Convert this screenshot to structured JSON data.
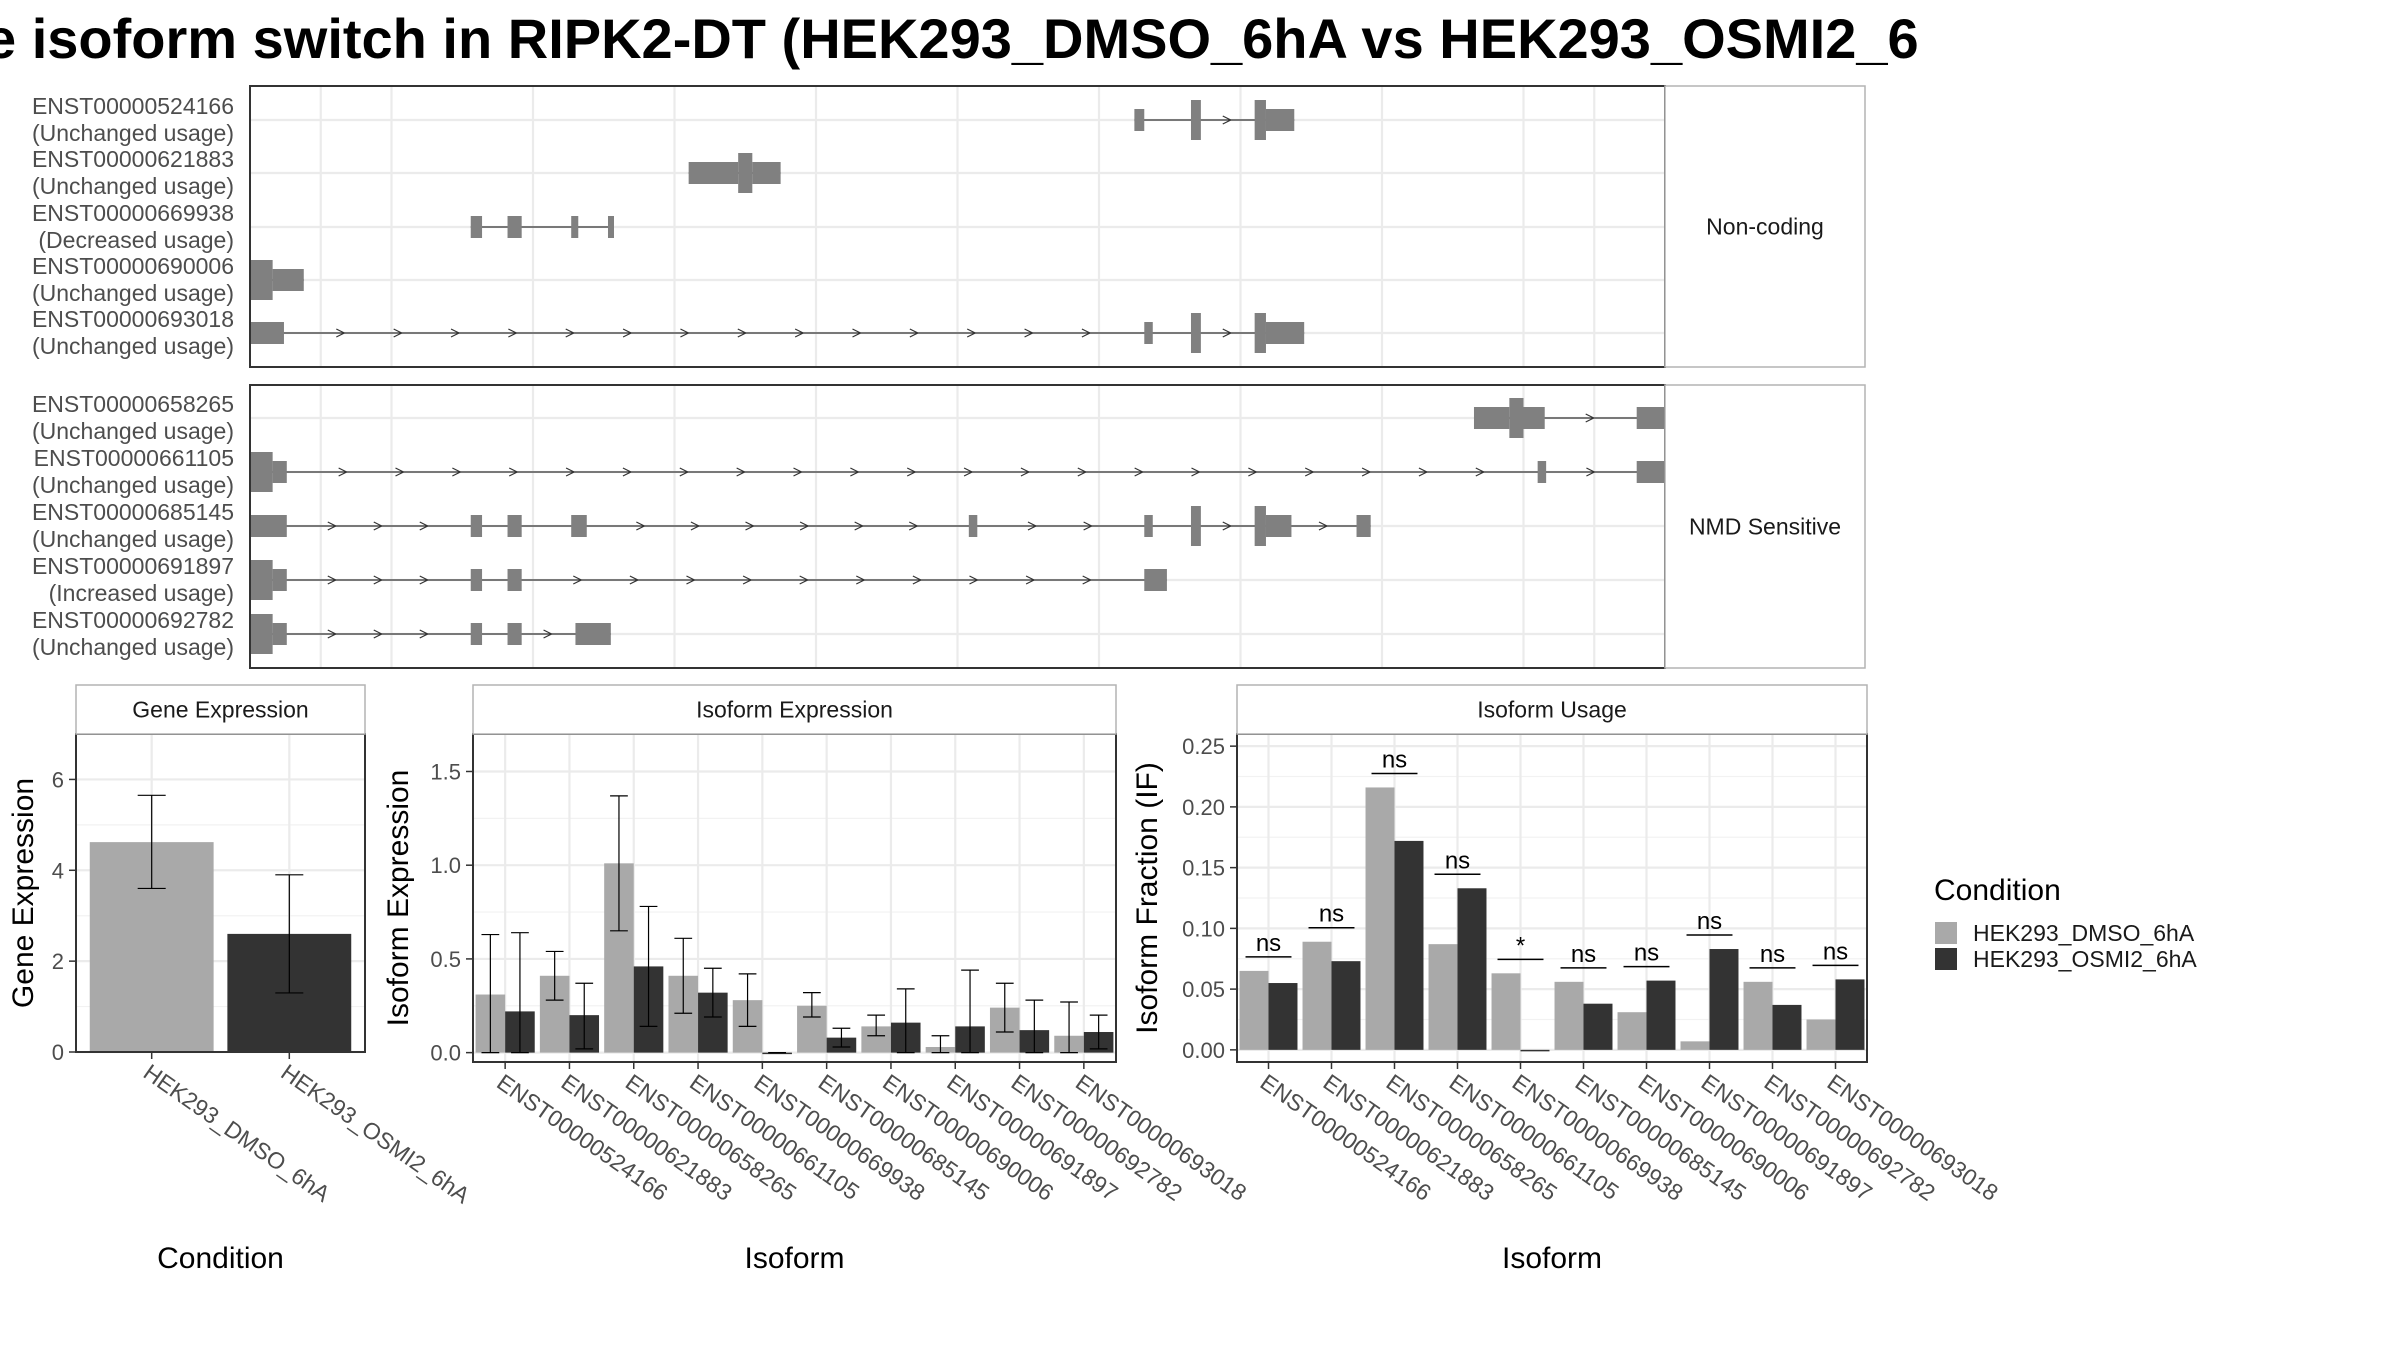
{
  "title": "e isoform switch in RIPK2-DT (HEK293_DMSO_6hA vs HEK293_OSMI2_6",
  "colors": {
    "dmso": "#a9a9a9",
    "osmi2": "#333333",
    "exon": "#808080",
    "grid": "#ebebeb",
    "strip_fill": "#ffffff"
  },
  "chart_data": [
    {
      "type": "transcript_structure",
      "panel": "Non-coding",
      "transcripts": [
        {
          "id": "ENST00000524166",
          "usage": "(Unchanged usage)"
        },
        {
          "id": "ENST00000621883",
          "usage": "(Unchanged usage)"
        },
        {
          "id": "ENST00000669938",
          "usage": "(Decreased usage)"
        },
        {
          "id": "ENST00000690006",
          "usage": "(Unchanged usage)"
        },
        {
          "id": "ENST00000693018",
          "usage": "(Unchanged usage)"
        }
      ]
    },
    {
      "type": "transcript_structure",
      "panel": "NMD Sensitive",
      "transcripts": [
        {
          "id": "ENST00000658265",
          "usage": "(Unchanged usage)"
        },
        {
          "id": "ENST00000661105",
          "usage": "(Unchanged usage)"
        },
        {
          "id": "ENST00000685145",
          "usage": "(Unchanged usage)"
        },
        {
          "id": "ENST00000691897",
          "usage": "(Increased usage)"
        },
        {
          "id": "ENST00000692782",
          "usage": "(Unchanged usage)"
        }
      ]
    },
    {
      "type": "bar",
      "title": "Gene Expression",
      "xlabel": "Condition",
      "ylabel": "Gene Expression",
      "ylim": [
        0,
        7
      ],
      "yticks": [
        0,
        2,
        4,
        6
      ],
      "categories": [
        "HEK293_DMSO_6hA",
        "HEK293_OSMI2_6hA"
      ],
      "values": [
        4.62,
        2.6
      ],
      "err_low": [
        3.6,
        1.3
      ],
      "err_high": [
        5.65,
        3.9
      ]
    },
    {
      "type": "bar",
      "title": "Isoform Expression",
      "xlabel": "Isoform",
      "ylabel": "Isoform Expression",
      "ylim": [
        -0.05,
        1.7
      ],
      "yticks": [
        0.0,
        0.5,
        1.0,
        1.5
      ],
      "ytick_labels": [
        "0.0",
        "0.5",
        "1.0",
        "1.5"
      ],
      "categories": [
        "ENST00000524166",
        "ENST00000621883",
        "ENST00000658265",
        "ENST00000661105",
        "ENST00000669938",
        "ENST00000685145",
        "ENST00000690006",
        "ENST00000691897",
        "ENST00000692782",
        "ENST00000693018"
      ],
      "series": [
        {
          "name": "HEK293_DMSO_6hA",
          "values": [
            0.31,
            0.41,
            1.01,
            0.41,
            0.28,
            0.25,
            0.14,
            0.03,
            0.24,
            0.09
          ],
          "err_low": [
            0.0,
            0.28,
            0.65,
            0.21,
            0.14,
            0.19,
            0.09,
            0.0,
            0.11,
            0.0
          ],
          "err_high": [
            0.63,
            0.54,
            1.37,
            0.61,
            0.42,
            0.32,
            0.2,
            0.09,
            0.37,
            0.27
          ]
        },
        {
          "name": "HEK293_OSMI2_6hA",
          "values": [
            0.22,
            0.2,
            0.46,
            0.32,
            0.0,
            0.08,
            0.16,
            0.14,
            0.12,
            0.11
          ],
          "err_low": [
            0.0,
            0.02,
            0.14,
            0.19,
            0.0,
            0.03,
            0.0,
            0.0,
            0.0,
            0.02
          ],
          "err_high": [
            0.64,
            0.37,
            0.78,
            0.45,
            0.0,
            0.13,
            0.34,
            0.44,
            0.28,
            0.2
          ]
        }
      ]
    },
    {
      "type": "bar",
      "title": "Isoform Usage",
      "xlabel": "Isoform",
      "ylabel": "Isoform Fraction (IF)",
      "ylim": [
        -0.01,
        0.26
      ],
      "yticks": [
        0.0,
        0.05,
        0.1,
        0.15,
        0.2,
        0.25
      ],
      "ytick_labels": [
        "0.00",
        "0.05",
        "0.10",
        "0.15",
        "0.20",
        "0.25"
      ],
      "categories": [
        "ENST00000524166",
        "ENST00000621883",
        "ENST00000658265",
        "ENST00000661105",
        "ENST00000669938",
        "ENST00000685145",
        "ENST00000690006",
        "ENST00000691897",
        "ENST00000692782",
        "ENST00000693018"
      ],
      "series": [
        {
          "name": "HEK293_DMSO_6hA",
          "values": [
            0.065,
            0.089,
            0.216,
            0.087,
            0.063,
            0.056,
            0.031,
            0.007,
            0.056,
            0.025
          ]
        },
        {
          "name": "HEK293_OSMI2_6hA",
          "values": [
            0.055,
            0.073,
            0.172,
            0.133,
            0.0,
            0.038,
            0.057,
            0.083,
            0.037,
            0.058
          ]
        }
      ],
      "annotations": [
        "ns",
        "ns",
        "ns",
        "ns",
        "*",
        "ns",
        "ns",
        "ns",
        "ns",
        "ns"
      ]
    }
  ],
  "legend": {
    "title": "Condition",
    "items": [
      "HEK293_DMSO_6hA",
      "HEK293_OSMI2_6hA"
    ]
  }
}
